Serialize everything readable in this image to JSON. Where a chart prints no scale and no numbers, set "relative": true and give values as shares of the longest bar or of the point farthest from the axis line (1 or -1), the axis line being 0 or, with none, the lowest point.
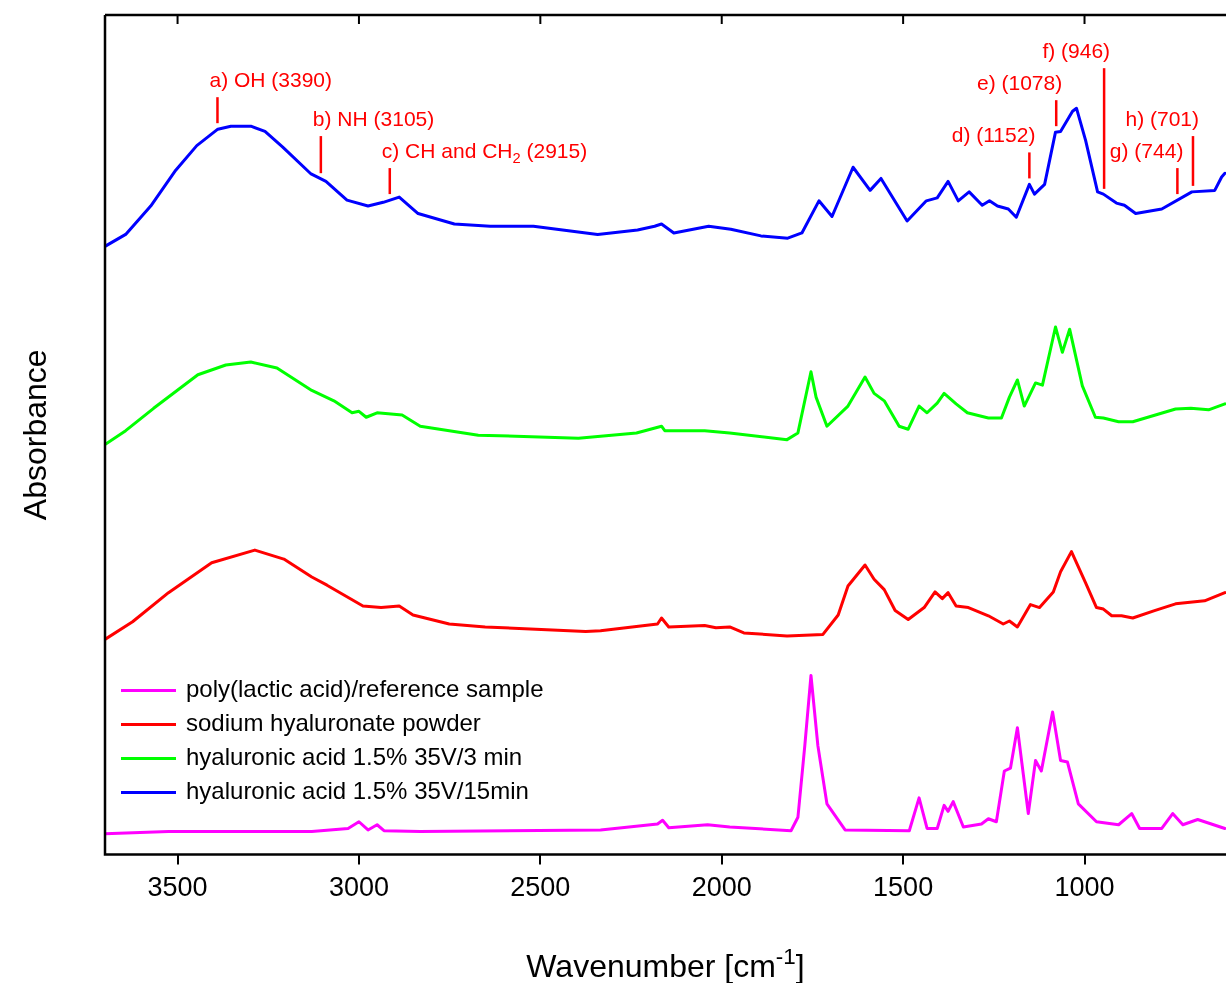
{
  "chart_data": {
    "type": "line",
    "relative": true,
    "xlabel": "Wavenumber [cm$^{-1}$]",
    "ylabel": "Absorbance",
    "xlim": [
      3700,
      610
    ],
    "xticks": [
      3500,
      3000,
      2500,
      2000,
      1500,
      1000
    ],
    "grid": false,
    "legend": "bottom left",
    "marker": "none",
    "line_style": "solid",
    "series": [
      {
        "name": "poly(lactic acid)/reference sample",
        "color": "#ff00ff",
        "x": [
          3700,
          3525,
          3130,
          3030,
          3000,
          2975,
          2950,
          2931,
          2831,
          2334,
          2177,
          2163,
          2146,
          2039,
          1978,
          1809,
          1790,
          1771,
          1754,
          1735,
          1710,
          1660,
          1483,
          1456,
          1434,
          1406,
          1387,
          1376,
          1362,
          1334,
          1284,
          1265,
          1243,
          1221,
          1204,
          1185,
          1155,
          1135,
          1119,
          1088,
          1066,
          1047,
          1017,
          967,
          906,
          870,
          848,
          787,
          757,
          729,
          688,
          613
        ],
        "values": [
          0.028,
          0.031,
          0.031,
          0.035,
          0.044,
          0.033,
          0.04,
          0.032,
          0.031,
          0.033,
          0.041,
          0.046,
          0.036,
          0.04,
          0.037,
          0.032,
          0.05,
          0.146,
          0.24,
          0.146,
          0.068,
          0.033,
          0.032,
          0.076,
          0.035,
          0.035,
          0.066,
          0.058,
          0.071,
          0.037,
          0.041,
          0.048,
          0.044,
          0.112,
          0.116,
          0.17,
          0.055,
          0.126,
          0.112,
          0.191,
          0.126,
          0.124,
          0.068,
          0.044,
          0.04,
          0.055,
          0.035,
          0.035,
          0.055,
          0.04,
          0.047,
          0.035
        ]
      },
      {
        "name": "sodium hyaluronate powder",
        "color": "#ff0000",
        "x": [
          3698,
          3624,
          3525,
          3406,
          3287,
          3207,
          3130,
          3088,
          2989,
          2939,
          2889,
          2851,
          2751,
          2652,
          2375,
          2334,
          2177,
          2166,
          2146,
          2047,
          2016,
          1978,
          1939,
          1820,
          1721,
          1679,
          1652,
          1605,
          1580,
          1552,
          1522,
          1486,
          1442,
          1412,
          1392,
          1376,
          1354,
          1320,
          1265,
          1224,
          1207,
          1185,
          1149,
          1124,
          1086,
          1066,
          1036,
          997,
          967,
          948,
          925,
          898,
          867,
          807,
          749,
          669,
          613
        ],
        "values": [
          0.289,
          0.312,
          0.351,
          0.391,
          0.408,
          0.396,
          0.372,
          0.361,
          0.333,
          0.331,
          0.333,
          0.321,
          0.309,
          0.305,
          0.299,
          0.3,
          0.309,
          0.317,
          0.305,
          0.307,
          0.304,
          0.305,
          0.297,
          0.293,
          0.295,
          0.321,
          0.36,
          0.388,
          0.369,
          0.355,
          0.327,
          0.315,
          0.331,
          0.352,
          0.343,
          0.351,
          0.333,
          0.331,
          0.32,
          0.309,
          0.313,
          0.305,
          0.335,
          0.331,
          0.352,
          0.379,
          0.406,
          0.364,
          0.331,
          0.329,
          0.32,
          0.32,
          0.317,
          0.327,
          0.336,
          0.34,
          0.351
        ]
      },
      {
        "name": "hyaluronic acid 1.5% 35V/3 min",
        "color": "#00ff00",
        "x": [
          3698,
          3643,
          3566,
          3444,
          3367,
          3298,
          3226,
          3130,
          3069,
          3019,
          3000,
          2980,
          2950,
          2881,
          2831,
          2671,
          2395,
          2235,
          2166,
          2157,
          2047,
          1978,
          1820,
          1790,
          1754,
          1740,
          1710,
          1652,
          1605,
          1580,
          1552,
          1511,
          1486,
          1456,
          1434,
          1406,
          1387,
          1354,
          1323,
          1265,
          1229,
          1207,
          1185,
          1166,
          1135,
          1116,
          1080,
          1061,
          1041,
          1006,
          970,
          948,
          906,
          867,
          749,
          707,
          658,
          613
        ],
        "values": [
          0.55,
          0.568,
          0.598,
          0.643,
          0.656,
          0.66,
          0.652,
          0.622,
          0.608,
          0.592,
          0.594,
          0.586,
          0.592,
          0.589,
          0.574,
          0.562,
          0.558,
          0.565,
          0.574,
          0.568,
          0.568,
          0.565,
          0.556,
          0.565,
          0.647,
          0.613,
          0.574,
          0.601,
          0.64,
          0.618,
          0.608,
          0.574,
          0.57,
          0.601,
          0.592,
          0.605,
          0.618,
          0.604,
          0.592,
          0.585,
          0.585,
          0.613,
          0.636,
          0.601,
          0.632,
          0.629,
          0.707,
          0.673,
          0.704,
          0.628,
          0.586,
          0.585,
          0.58,
          0.58,
          0.597,
          0.598,
          0.596,
          0.604
        ]
      },
      {
        "name": "hyaluronic acid 1.5% 35V/15min",
        "color": "#0000ff",
        "x": [
          3700,
          3643,
          3574,
          3505,
          3447,
          3389,
          3353,
          3298,
          3259,
          3210,
          3132,
          3091,
          3033,
          2975,
          2933,
          2889,
          2837,
          2737,
          2638,
          2519,
          2342,
          2232,
          2185,
          2166,
          2132,
          2036,
          1975,
          1892,
          1818,
          1779,
          1732,
          1696,
          1638,
          1591,
          1561,
          1489,
          1436,
          1406,
          1376,
          1348,
          1318,
          1282,
          1262,
          1240,
          1210,
          1188,
          1152,
          1138,
          1110,
          1080,
          1066,
          1033,
          1022,
          997,
          964,
          948,
          912,
          890,
          859,
          787,
          704,
          641,
          622,
          613
        ],
        "values": [
          0.815,
          0.831,
          0.869,
          0.917,
          0.95,
          0.972,
          0.976,
          0.976,
          0.969,
          0.948,
          0.912,
          0.902,
          0.877,
          0.869,
          0.874,
          0.881,
          0.859,
          0.845,
          0.842,
          0.842,
          0.831,
          0.837,
          0.842,
          0.845,
          0.833,
          0.842,
          0.838,
          0.829,
          0.826,
          0.833,
          0.876,
          0.855,
          0.921,
          0.89,
          0.906,
          0.849,
          0.876,
          0.88,
          0.902,
          0.876,
          0.888,
          0.87,
          0.876,
          0.869,
          0.865,
          0.854,
          0.898,
          0.885,
          0.898,
          0.968,
          0.969,
          0.996,
          1,
          0.957,
          0.888,
          0.885,
          0.873,
          0.87,
          0.859,
          0.865,
          0.888,
          0.89,
          0.908,
          0.913
        ]
      }
    ],
    "annotations": [
      {
        "text": "a) OH (3390)",
        "x": 3390,
        "y": 0.972
      },
      {
        "text": "b) NH (3105)",
        "x": 3105,
        "y": 0.905
      },
      {
        "text": "c) CH and CH$_{2}$ (2915)",
        "x": 2915,
        "y": 0.877
      },
      {
        "text": "d) (1152)",
        "x": 1152,
        "y": 0.898
      },
      {
        "text": "e) (1078)",
        "x": 1078,
        "y": 0.968
      },
      {
        "text": "f) (946)",
        "x": 946,
        "y": 0.884
      },
      {
        "text": "g) (744)",
        "x": 744,
        "y": 0.877
      },
      {
        "text": "h) (701)",
        "x": 701,
        "y": 0.888
      }
    ]
  }
}
